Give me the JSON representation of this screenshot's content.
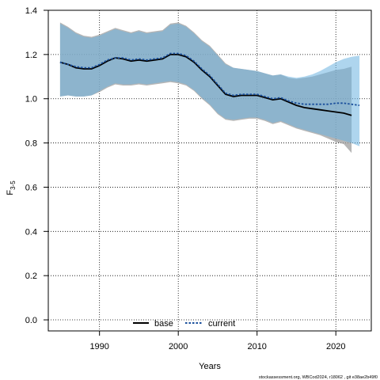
{
  "chart_data": {
    "type": "line",
    "xlabel": "Years",
    "ylabel_main": "F",
    "ylabel_sub": "3-5",
    "xlim": [
      1983.5,
      2024.5
    ],
    "ylim": [
      -0.05,
      1.4
    ],
    "x_ticks": [
      1990,
      2000,
      2010,
      2020
    ],
    "y_ticks": [
      0.0,
      0.2,
      0.4,
      0.6,
      0.8,
      1.0,
      1.2,
      1.4
    ],
    "y_tick_labels": [
      "0.0",
      "0.2",
      "0.4",
      "0.6",
      "0.8",
      "1.0",
      "1.2",
      "1.4"
    ],
    "grid": true,
    "legend_position": "bottom",
    "series": [
      {
        "name": "base",
        "color": "#000000",
        "line_style": "solid",
        "band_color": "#9e9e9e",
        "x": [
          1985,
          1986,
          1987,
          1988,
          1989,
          1990,
          1991,
          1992,
          1993,
          1994,
          1995,
          1996,
          1997,
          1998,
          1999,
          2000,
          2001,
          2002,
          2003,
          2004,
          2005,
          2006,
          2007,
          2008,
          2009,
          2010,
          2011,
          2012,
          2013,
          2014,
          2015,
          2016,
          2017,
          2018,
          2019,
          2020,
          2021,
          2022
        ],
        "values": [
          1.165,
          1.155,
          1.14,
          1.135,
          1.135,
          1.15,
          1.17,
          1.185,
          1.18,
          1.17,
          1.175,
          1.17,
          1.175,
          1.18,
          1.2,
          1.2,
          1.19,
          1.165,
          1.13,
          1.1,
          1.06,
          1.02,
          1.01,
          1.015,
          1.015,
          1.015,
          1.005,
          0.995,
          1.0,
          0.985,
          0.97,
          0.96,
          0.955,
          0.95,
          0.945,
          0.94,
          0.935,
          0.925
        ],
        "lower": [
          1.01,
          1.015,
          1.01,
          1.01,
          1.015,
          1.03,
          1.05,
          1.065,
          1.06,
          1.06,
          1.065,
          1.06,
          1.065,
          1.07,
          1.075,
          1.07,
          1.06,
          1.035,
          1.0,
          0.97,
          0.93,
          0.905,
          0.9,
          0.905,
          0.91,
          0.91,
          0.9,
          0.885,
          0.895,
          0.88,
          0.865,
          0.855,
          0.845,
          0.835,
          0.82,
          0.805,
          0.795,
          0.755
        ],
        "upper": [
          1.345,
          1.325,
          1.3,
          1.285,
          1.28,
          1.29,
          1.305,
          1.32,
          1.31,
          1.3,
          1.31,
          1.3,
          1.305,
          1.31,
          1.34,
          1.345,
          1.33,
          1.3,
          1.265,
          1.24,
          1.2,
          1.16,
          1.14,
          1.135,
          1.13,
          1.125,
          1.115,
          1.105,
          1.11,
          1.095,
          1.09,
          1.095,
          1.1,
          1.11,
          1.12,
          1.13,
          1.135,
          1.145
        ]
      },
      {
        "name": "current",
        "color": "#1a4f9c",
        "line_style": "dotted",
        "band_color": "#6cb3e0",
        "x": [
          1985,
          1986,
          1987,
          1988,
          1989,
          1990,
          1991,
          1992,
          1993,
          1994,
          1995,
          1996,
          1997,
          1998,
          1999,
          2000,
          2001,
          2002,
          2003,
          2004,
          2005,
          2006,
          2007,
          2008,
          2009,
          2010,
          2011,
          2012,
          2013,
          2014,
          2015,
          2016,
          2017,
          2018,
          2019,
          2020,
          2021,
          2022,
          2023
        ],
        "values": [
          1.165,
          1.155,
          1.145,
          1.14,
          1.14,
          1.155,
          1.175,
          1.185,
          1.185,
          1.175,
          1.18,
          1.175,
          1.18,
          1.185,
          1.205,
          1.205,
          1.195,
          1.17,
          1.135,
          1.105,
          1.065,
          1.025,
          1.015,
          1.02,
          1.02,
          1.02,
          1.01,
          1.0,
          1.005,
          0.99,
          0.98,
          0.975,
          0.975,
          0.975,
          0.975,
          0.98,
          0.98,
          0.975,
          0.97
        ],
        "lower": [
          1.01,
          1.015,
          1.01,
          1.01,
          1.015,
          1.035,
          1.055,
          1.07,
          1.065,
          1.065,
          1.07,
          1.065,
          1.07,
          1.075,
          1.08,
          1.075,
          1.065,
          1.04,
          1.005,
          0.975,
          0.935,
          0.91,
          0.905,
          0.91,
          0.915,
          0.915,
          0.905,
          0.89,
          0.9,
          0.885,
          0.87,
          0.86,
          0.85,
          0.84,
          0.83,
          0.82,
          0.81,
          0.8,
          0.785
        ],
        "upper": [
          1.34,
          1.32,
          1.295,
          1.28,
          1.275,
          1.285,
          1.3,
          1.315,
          1.305,
          1.295,
          1.305,
          1.295,
          1.3,
          1.305,
          1.335,
          1.34,
          1.325,
          1.295,
          1.26,
          1.235,
          1.195,
          1.155,
          1.14,
          1.135,
          1.13,
          1.125,
          1.115,
          1.105,
          1.11,
          1.1,
          1.095,
          1.1,
          1.11,
          1.125,
          1.145,
          1.165,
          1.18,
          1.19,
          1.195
        ]
      }
    ],
    "caption": "stockassessment.org, WBCod2024, r18062 , git e38ae2b49f0"
  }
}
